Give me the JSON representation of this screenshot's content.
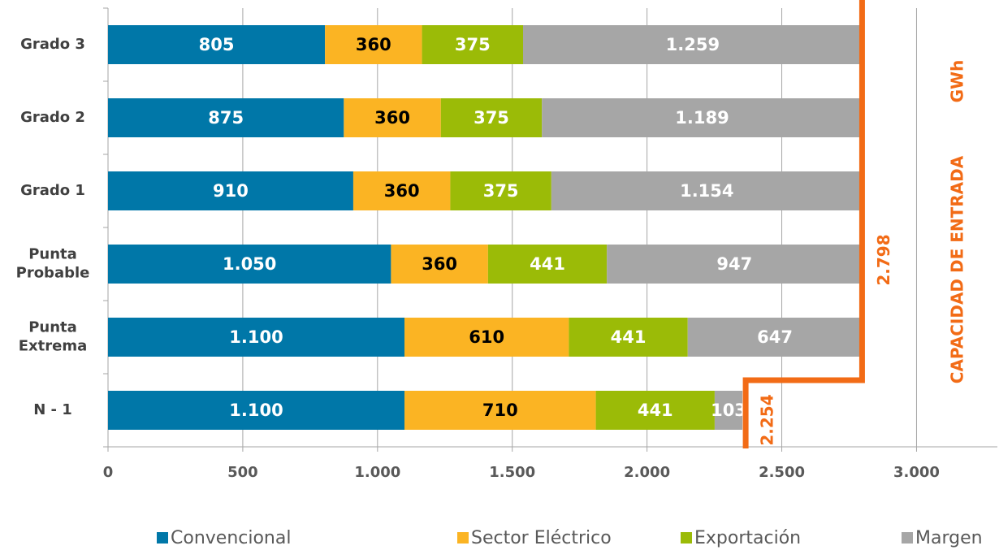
{
  "chart_data": {
    "type": "stacked-bar-horizontal",
    "categories": [
      "Grado 3",
      "Grado 2",
      "Grado 1",
      "Punta Probable",
      "Punta Extrema",
      "N - 1"
    ],
    "series": [
      {
        "name": "Convencional",
        "color": "#0077a8",
        "label_color": "#ffffff",
        "values": [
          805,
          875,
          910,
          1050,
          1100,
          1100
        ],
        "value_labels": [
          "805",
          "875",
          "910",
          "1.050",
          "1.100",
          "1.100"
        ]
      },
      {
        "name": "Sector Eléctrico",
        "color": "#fbb423",
        "label_color": "#000000",
        "values": [
          360,
          360,
          360,
          360,
          610,
          710
        ]
      },
      {
        "name": "Exportación",
        "color": "#9bbb07",
        "label_color": "#ffffff",
        "values": [
          375,
          375,
          375,
          441,
          441,
          441
        ]
      },
      {
        "name": "Margen",
        "color": "#a6a6a6",
        "label_color": "#ffffff",
        "values": [
          1259,
          1189,
          1154,
          947,
          647,
          103
        ],
        "value_labels": [
          "1.259",
          "1.189",
          "1.154",
          "947",
          "647",
          "103"
        ]
      }
    ],
    "xlim": [
      0,
      3300
    ],
    "xticks": [
      0,
      500,
      {
        "value": 1000,
        "label": "1.000"
      },
      {
        "value": 1500,
        "label": "1.500"
      },
      {
        "value": 2000,
        "label": "2.000"
      },
      {
        "value": 2500,
        "label": "2.500"
      },
      {
        "value": 3000,
        "label": "3.000"
      }
    ],
    "grid": true,
    "annotations": [
      {
        "value": 2798,
        "label": "2.798",
        "color": "#f26b16"
      },
      {
        "value": 2254,
        "label": "2.254",
        "color": "#f26b16"
      }
    ],
    "side_label": "CAPACIDAD DE ENTRADA",
    "unit_label": "GWh",
    "legend": "bottom"
  }
}
